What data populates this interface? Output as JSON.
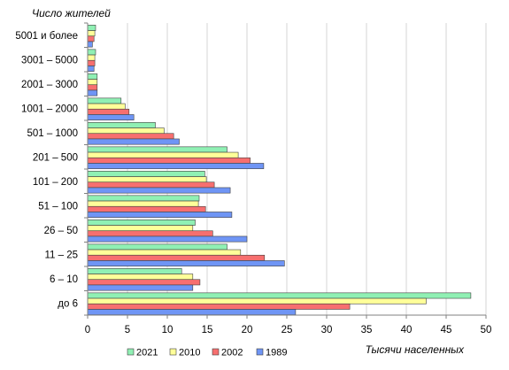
{
  "chart_data": {
    "type": "bar",
    "orientation": "horizontal",
    "ylabel": "Число жителей",
    "xlabel": "Тысячи населенных",
    "xlim": [
      0,
      50
    ],
    "xticks": [
      0,
      5,
      10,
      15,
      20,
      25,
      30,
      35,
      40,
      45,
      50
    ],
    "grid": true,
    "legend_position": "bottom",
    "categories": [
      "5001 и более",
      "3001 – 5000",
      "2001 – 3000",
      "1001 – 2000",
      "501 – 1000",
      "201 – 500",
      "101 – 200",
      "51 – 100",
      "26 – 50",
      "11 – 25",
      "6 – 10",
      "до 6"
    ],
    "series": [
      {
        "name": "2021",
        "color": "#90f0b4",
        "values": [
          1.0,
          1.0,
          1.2,
          4.2,
          8.5,
          17.5,
          14.7,
          14.0,
          13.5,
          17.5,
          11.8,
          48.1
        ]
      },
      {
        "name": "2010",
        "color": "#ffff99",
        "values": [
          0.9,
          0.9,
          1.2,
          4.7,
          9.6,
          18.9,
          14.9,
          13.9,
          13.2,
          19.2,
          13.2,
          42.5
        ]
      },
      {
        "name": "2002",
        "color": "#f76f6f",
        "values": [
          0.8,
          0.9,
          1.2,
          5.2,
          10.8,
          20.4,
          15.9,
          14.8,
          15.7,
          22.2,
          14.1,
          32.9
        ]
      },
      {
        "name": "1989",
        "color": "#6f95f5",
        "values": [
          0.6,
          0.8,
          1.2,
          5.8,
          11.5,
          22.1,
          17.9,
          18.1,
          20.0,
          24.7,
          13.2,
          26.1
        ]
      }
    ]
  }
}
